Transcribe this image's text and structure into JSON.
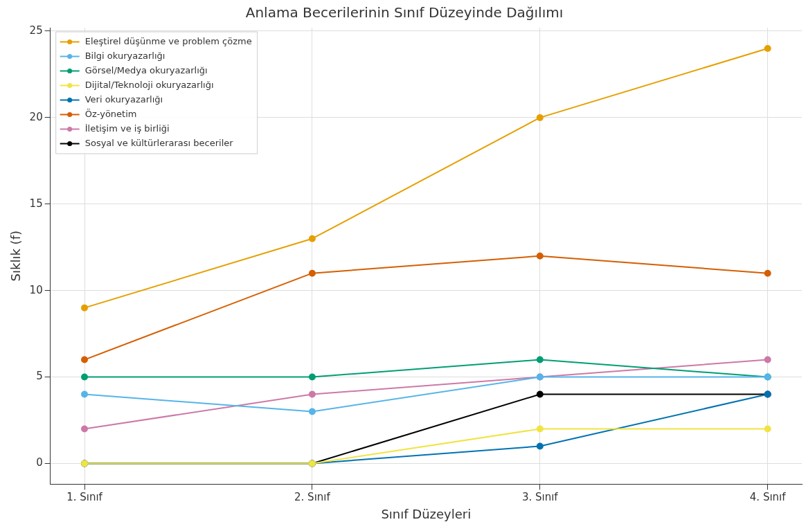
{
  "chart_data": {
    "type": "line",
    "title": "Anlama Becerilerinin Sınıf Düzeyinde Dağılımı",
    "xlabel": "Sınıf Düzeyleri",
    "ylabel": "Sıklık (f)",
    "categories": [
      "1. Sınıf",
      "2. Sınıf",
      "3. Sınıf",
      "4. Sınıf"
    ],
    "series": [
      {
        "name": "Eleştirel düşünme ve problem çözme",
        "color": "#e69f00",
        "values": [
          9,
          13,
          20,
          24
        ]
      },
      {
        "name": "Bilgi okuryazarlığı",
        "color": "#56b4e9",
        "values": [
          4,
          3,
          5,
          5
        ]
      },
      {
        "name": "Görsel/Medya okuryazarlığı",
        "color": "#009e73",
        "values": [
          5,
          5,
          6,
          5
        ]
      },
      {
        "name": "Dijital/Teknoloji okuryazarlığı",
        "color": "#f0e442",
        "values": [
          0,
          0,
          2,
          2
        ]
      },
      {
        "name": "Veri okuryazarlığı",
        "color": "#0072b2",
        "values": [
          0,
          0,
          1,
          4
        ]
      },
      {
        "name": "Öz-yönetim",
        "color": "#d55e00",
        "values": [
          6,
          11,
          12,
          11
        ]
      },
      {
        "name": "İletişim ve iş birliği",
        "color": "#cc79a7",
        "values": [
          2,
          4,
          5,
          6
        ]
      },
      {
        "name": "Sosyal ve kültürlerarası beceriler",
        "color": "#000000",
        "values": [
          0,
          0,
          4,
          4
        ]
      }
    ],
    "ylim": [
      -1.2,
      25.2
    ],
    "yticks": [
      0,
      5,
      10,
      15,
      20,
      25
    ],
    "grid": true,
    "legend": "top left",
    "marker": "circle",
    "line_style": "solid"
  }
}
